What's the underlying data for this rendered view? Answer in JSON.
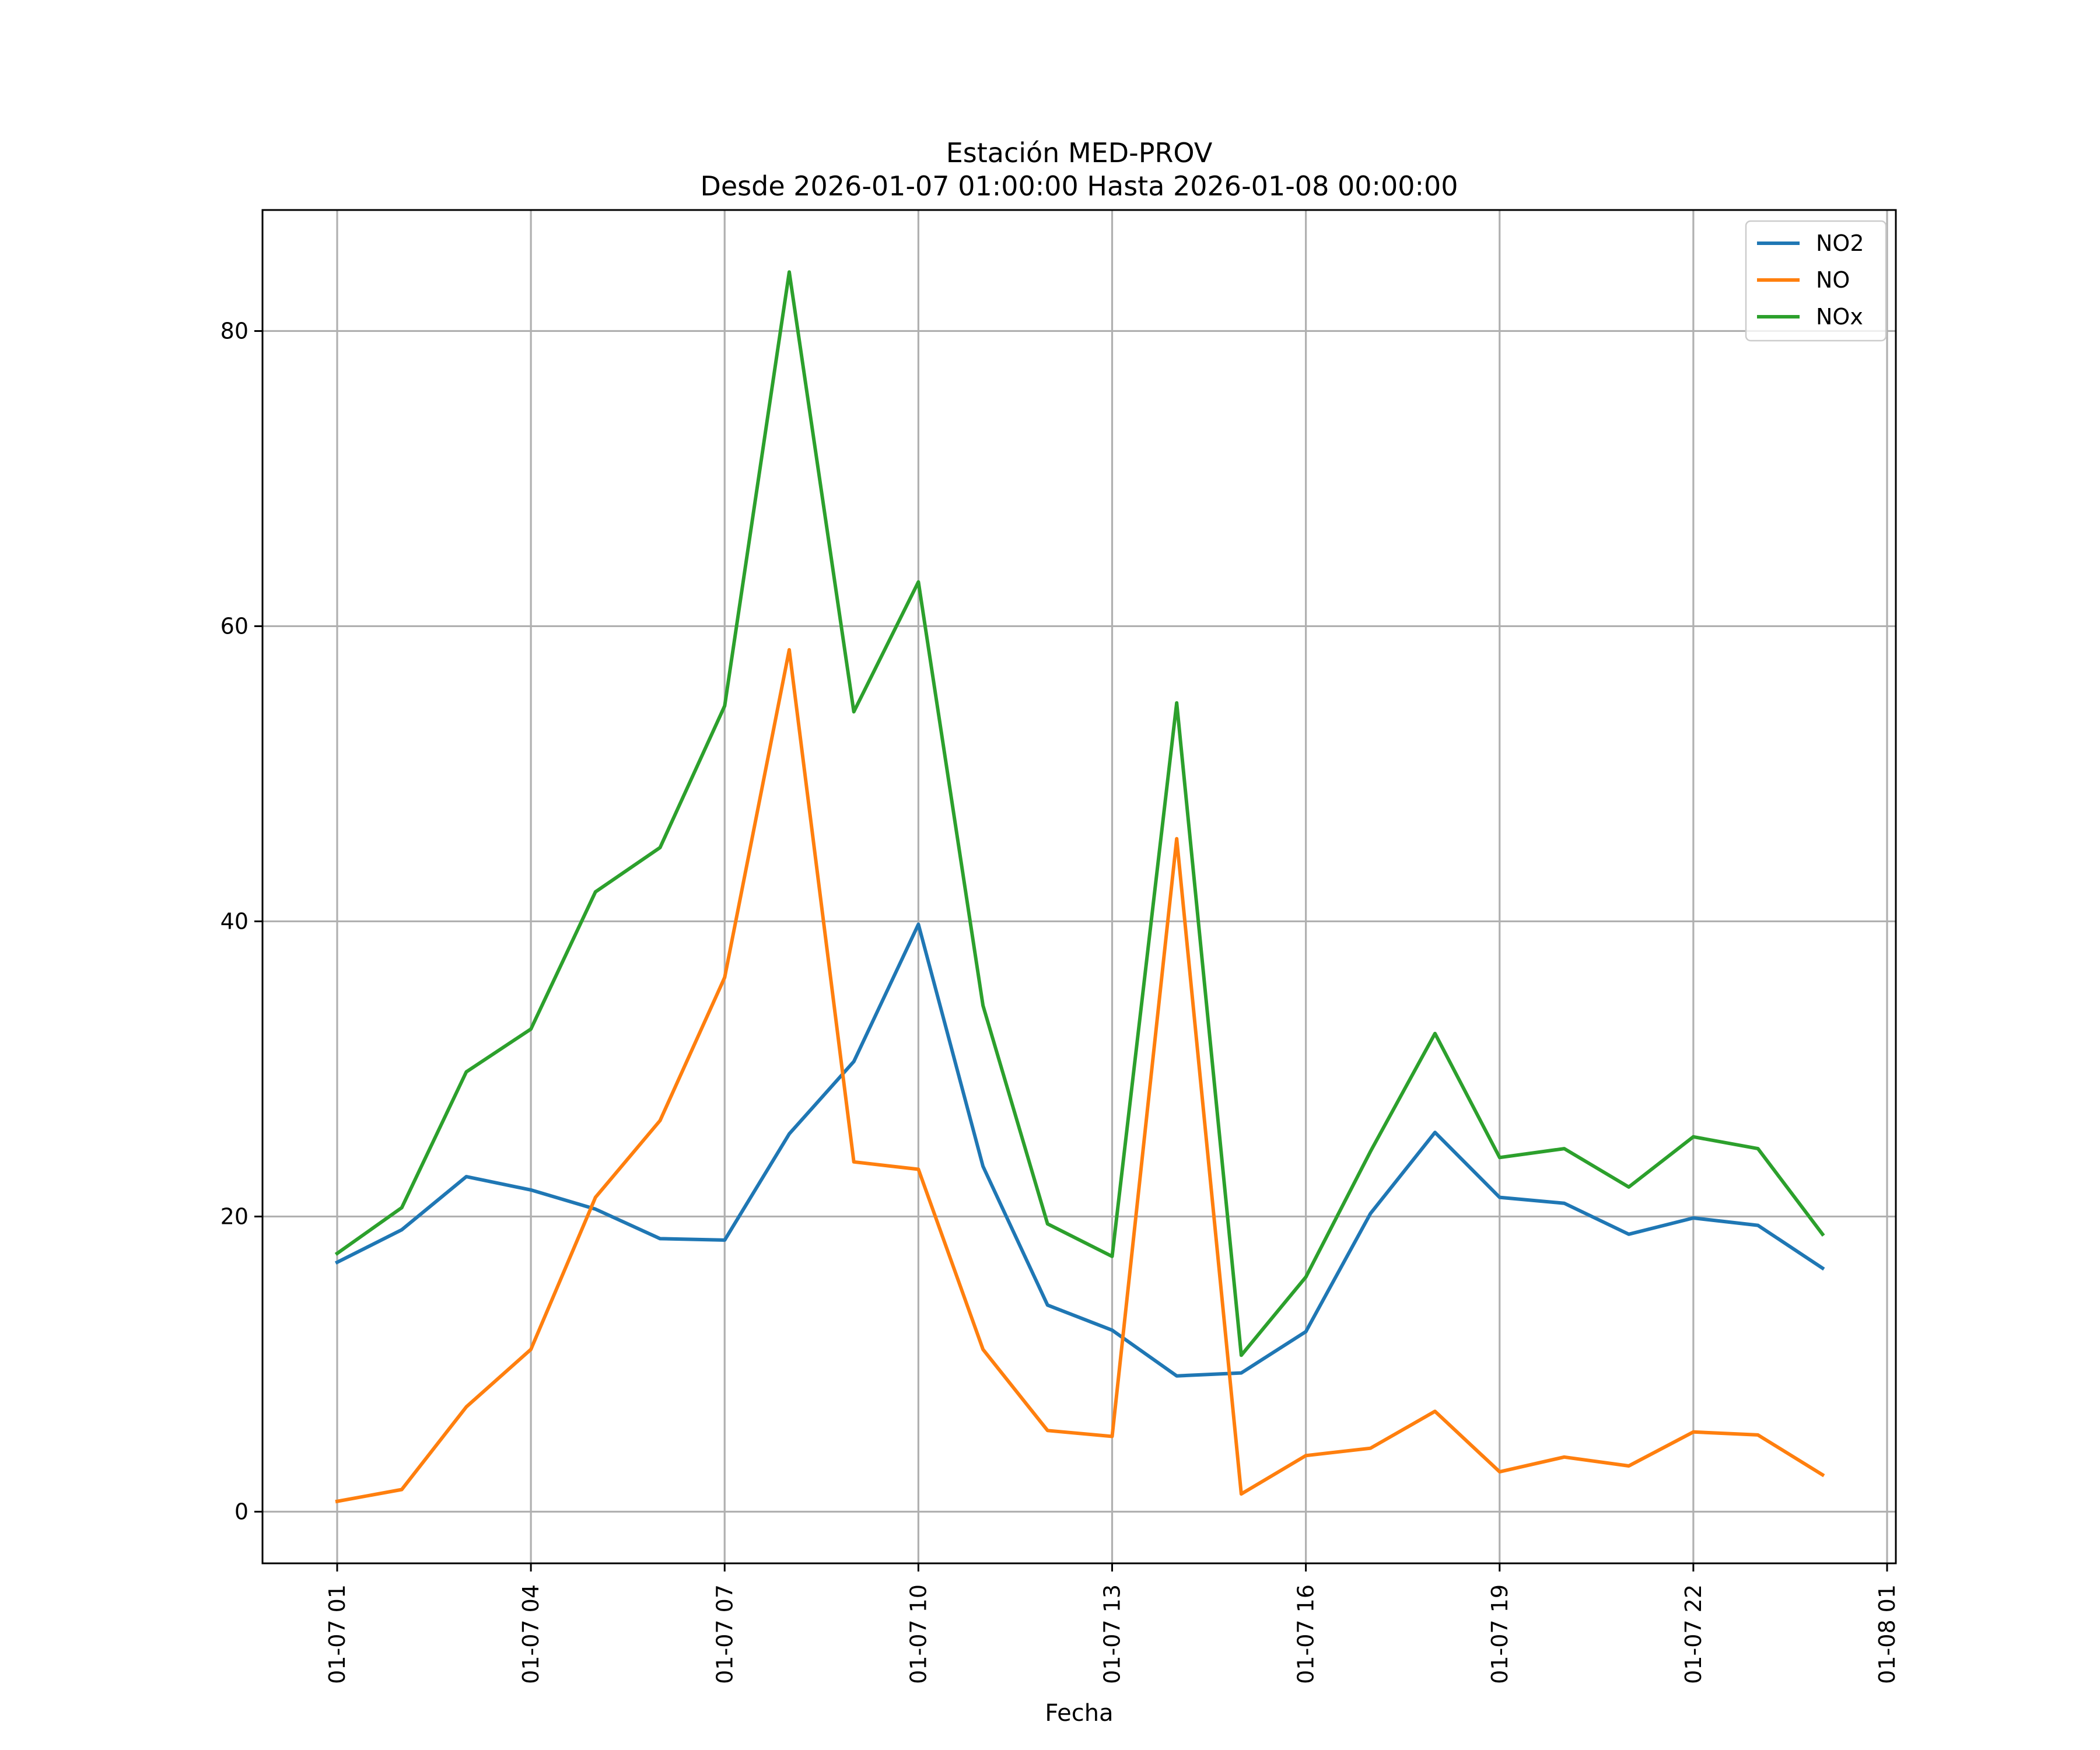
{
  "chart_data": {
    "type": "line",
    "title": "Estación MED-PROV",
    "subtitle": "Desde 2026-01-07 01:00:00 Hasta 2026-01-08 00:00:00",
    "xlabel": "Fecha",
    "ylabel": "",
    "x": [
      "01:00",
      "02:00",
      "03:00",
      "04:00",
      "05:00",
      "06:00",
      "07:00",
      "08:00",
      "09:00",
      "10:00",
      "11:00",
      "12:00",
      "13:00",
      "14:00",
      "15:00",
      "16:00",
      "17:00",
      "18:00",
      "19:00",
      "20:00",
      "21:00",
      "22:00",
      "23:00",
      "00:00"
    ],
    "x_tick_labels": [
      "01-07 01",
      "01-07 04",
      "01-07 07",
      "01-07 10",
      "01-07 13",
      "01-07 16",
      "01-07 19",
      "01-07 22",
      "01-08 01"
    ],
    "yticks": [
      0,
      20,
      40,
      60,
      80
    ],
    "ylim": [
      -3.5,
      88.2
    ],
    "grid": true,
    "legend_position": "top-right",
    "series": [
      {
        "name": "NO2",
        "color": "#1f77b4",
        "values": [
          16.9,
          19.1,
          22.7,
          21.8,
          20.5,
          18.5,
          18.4,
          25.6,
          30.5,
          39.8,
          23.4,
          14.0,
          12.3,
          9.2,
          9.4,
          12.2,
          20.2,
          25.7,
          21.3,
          20.9,
          18.8,
          19.9,
          19.4,
          16.5
        ]
      },
      {
        "name": "NO",
        "color": "#ff7f0e",
        "values": [
          0.7,
          1.5,
          7.1,
          11.0,
          21.3,
          26.5,
          36.2,
          58.4,
          23.7,
          23.2,
          11.0,
          5.5,
          5.1,
          45.6,
          1.2,
          3.8,
          4.3,
          6.8,
          2.7,
          3.7,
          3.1,
          5.4,
          5.2,
          2.5
        ]
      },
      {
        "name": "NOx",
        "color": "#2ca02c",
        "values": [
          17.5,
          20.6,
          29.8,
          32.7,
          42.0,
          45.0,
          54.6,
          84.0,
          54.2,
          63.0,
          34.3,
          19.5,
          17.3,
          54.8,
          10.6,
          15.9,
          24.4,
          32.4,
          24.0,
          24.6,
          22.0,
          25.4,
          24.6,
          18.8
        ]
      }
    ]
  }
}
